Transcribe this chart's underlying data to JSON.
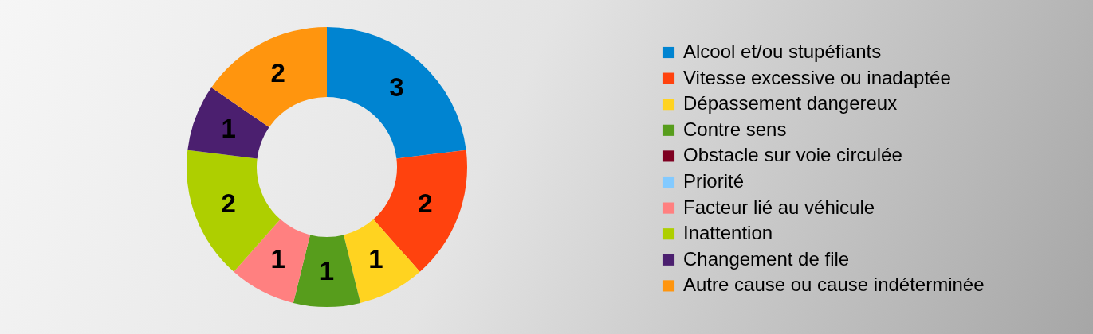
{
  "chart_data": {
    "type": "donut",
    "categories": [
      "Alcool et/ou stupéfiants",
      "Vitesse excessive ou inadaptée",
      "Dépassement dangereux",
      "Contre sens",
      "Obstacle sur voie circulée",
      "Priorité",
      "Facteur lié au véhicule",
      "Inattention",
      "Changement de file",
      "Autre cause ou cause indéterminée"
    ],
    "values": [
      3,
      2,
      1,
      1,
      0,
      0,
      1,
      2,
      1,
      2
    ],
    "value_labels": [
      "3",
      "2",
      "1",
      "1",
      null,
      null,
      "1",
      "2",
      "1",
      "2"
    ],
    "colors": [
      "#0084d1",
      "#ff420e",
      "#ffd320",
      "#579d1c",
      "#7e0021",
      "#83caff",
      "#ff8080",
      "#aecf00",
      "#4b1f6f",
      "#ff950e"
    ],
    "legend": "right"
  }
}
